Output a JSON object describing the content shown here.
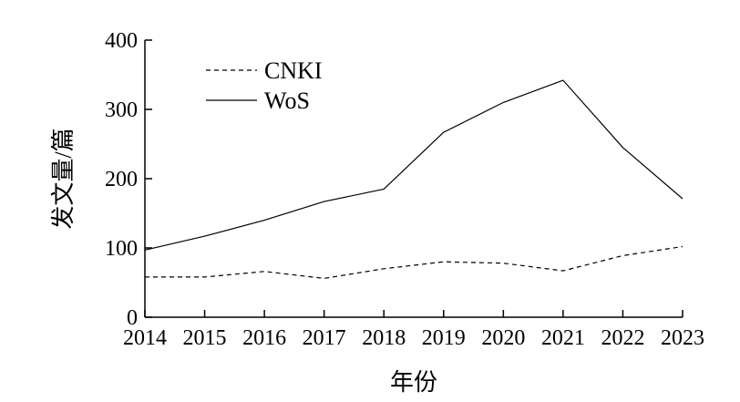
{
  "chart_data": {
    "type": "line",
    "xlabel": "年份",
    "ylabel": "发文量/篇",
    "x": [
      2014,
      2015,
      2016,
      2017,
      2018,
      2019,
      2020,
      2021,
      2022,
      2023
    ],
    "ylim": [
      0,
      400
    ],
    "yticks": [
      0,
      100,
      200,
      300,
      400
    ],
    "grid": false,
    "legend_position": "top-left",
    "series": [
      {
        "name": "CNKI",
        "style": "dashed",
        "color": "#000000",
        "values": [
          58,
          58,
          66,
          56,
          70,
          80,
          78,
          67,
          89,
          102
        ]
      },
      {
        "name": "WoS",
        "style": "solid",
        "color": "#000000",
        "values": [
          97,
          117,
          140,
          167,
          185,
          267,
          310,
          342,
          245,
          171
        ]
      }
    ]
  }
}
